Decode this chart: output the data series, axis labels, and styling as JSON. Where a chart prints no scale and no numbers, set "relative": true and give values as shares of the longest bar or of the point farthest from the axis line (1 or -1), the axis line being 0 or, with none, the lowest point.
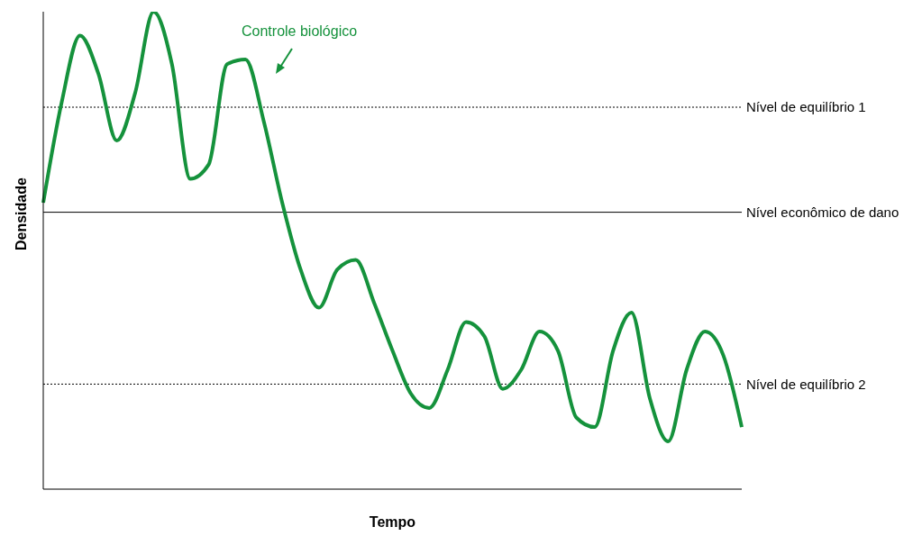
{
  "chart_data": {
    "type": "line",
    "relative": true,
    "xlabel": "Tempo",
    "ylabel": "Densidade",
    "categories": [
      null,
      null,
      null,
      null,
      null,
      null,
      null,
      null,
      null,
      null,
      null,
      null,
      null,
      null,
      null,
      null,
      null,
      null,
      null,
      null,
      null,
      null,
      null,
      null,
      null,
      null,
      null,
      null,
      null,
      null,
      null,
      null,
      null,
      null,
      null,
      null,
      null,
      null,
      null
    ],
    "series": [
      {
        "color": "#15923c",
        "values": [
          0.6,
          0.81,
          0.95,
          0.87,
          0.73,
          0.83,
          1.0,
          0.89,
          0.65,
          0.68,
          0.89,
          0.9,
          0.77,
          0.6,
          0.46,
          0.38,
          0.46,
          0.48,
          0.39,
          0.29,
          0.2,
          0.17,
          0.25,
          0.35,
          0.32,
          0.21,
          0.25,
          0.33,
          0.29,
          0.15,
          0.13,
          0.29,
          0.37,
          0.19,
          0.1,
          0.25,
          0.33,
          0.28,
          0.13
        ]
      }
    ],
    "ref_lines": [
      {
        "axis": "y",
        "value": 0.8,
        "label": "Nível de equilíbrio 1",
        "line_style": "dotted"
      },
      {
        "axis": "y",
        "value": 0.58,
        "label": "Nível econômico de dano",
        "line_style": "solid"
      },
      {
        "axis": "y",
        "value": 0.22,
        "label": "Nível de equilíbrio 2",
        "line_style": "dotted"
      }
    ],
    "annotations": [
      "Controle biológico"
    ],
    "grid": false,
    "legend": false,
    "marker": "none",
    "line_style": "solid"
  }
}
